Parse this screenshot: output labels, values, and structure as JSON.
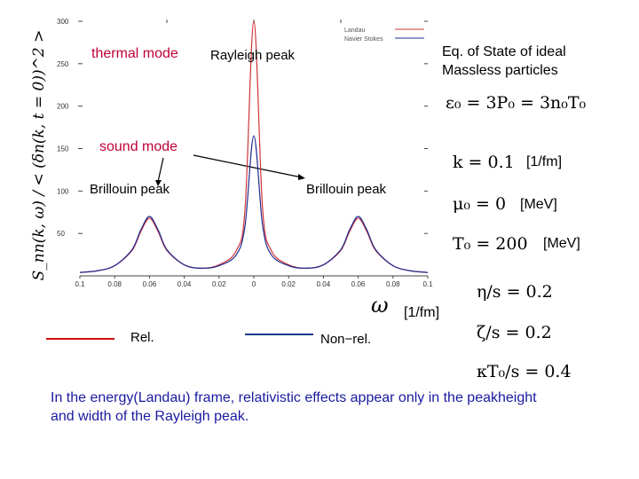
{
  "chart_data": {
    "type": "line",
    "title": "",
    "xlabel": "ω",
    "xunit": "[1/fm]",
    "ylabel": "S_nn(k, ω) / < (δn(k, t = 0))^2 >",
    "xlim": [
      -0.1,
      0.1
    ],
    "ylim": [
      0,
      300
    ],
    "x_tick_labels": [
      "0.1",
      "0.08",
      "0.06",
      "0.04",
      "0.02",
      "0",
      "0.02",
      "0.04",
      "0.06",
      "0.08",
      "0.1"
    ],
    "y_tick_labels": [
      "50",
      "100",
      "150",
      "200",
      "250",
      "300"
    ],
    "series": [
      {
        "name": "Landau",
        "color": "#d0353a",
        "x": [
          -0.1,
          -0.09,
          -0.08,
          -0.07,
          -0.065,
          -0.06,
          -0.055,
          -0.05,
          -0.04,
          -0.03,
          -0.02,
          -0.01,
          -0.005,
          0,
          0.005,
          0.01,
          0.02,
          0.03,
          0.04,
          0.05,
          0.055,
          0.06,
          0.065,
          0.07,
          0.08,
          0.09,
          0.1
        ],
        "y": [
          4,
          6,
          12,
          30,
          52,
          68,
          52,
          30,
          13,
          9,
          13,
          30,
          80,
          300,
          80,
          30,
          13,
          9,
          13,
          30,
          52,
          68,
          52,
          30,
          12,
          6,
          4
        ]
      },
      {
        "name": "Navier Stokes",
        "color": "#1f2c8f",
        "x": [
          -0.1,
          -0.09,
          -0.08,
          -0.07,
          -0.065,
          -0.06,
          -0.055,
          -0.05,
          -0.04,
          -0.03,
          -0.02,
          -0.01,
          -0.005,
          0,
          0.005,
          0.01,
          0.02,
          0.03,
          0.04,
          0.05,
          0.055,
          0.06,
          0.065,
          0.07,
          0.08,
          0.09,
          0.1
        ],
        "y": [
          4,
          6,
          12,
          31,
          54,
          70,
          54,
          31,
          13,
          9,
          12,
          25,
          60,
          165,
          60,
          25,
          12,
          9,
          13,
          31,
          54,
          70,
          54,
          31,
          12,
          6,
          4
        ]
      }
    ],
    "legend": {
      "placement": "top-right",
      "entries": [
        "Landau",
        "Navier Stokes"
      ]
    }
  },
  "annotations": {
    "thermal_mode": "thermal mode",
    "rayleigh_peak": "Rayleigh peak",
    "sound_mode": "sound mode",
    "brillouin_left": "Brillouin peak",
    "brillouin_right": "Brillouin peak"
  },
  "eos": {
    "line1": "Eq. of State of ideal",
    "line2": "Massless particles"
  },
  "parameters": {
    "energy_relation": "ε₀ = 3P₀ = 3n₀T₀",
    "k": "k = 0.1",
    "k_unit": "[1/fm]",
    "mu": "μ₀ = 0",
    "mu_unit": "[MeV]",
    "T": "T₀ = 200",
    "T_unit": "[MeV]",
    "eta": "η/s = 0.2",
    "zeta": "ζ/s = 0.2",
    "kappa": "κT₀/s = 0.4"
  },
  "axis_caption": {
    "omega": "ω",
    "unit": "[1/fm]"
  },
  "legend_bottom": {
    "rel": "Rel.",
    "rel_color": "#d01010",
    "nonrel": "Non−rel.",
    "nonrel_color": "#1a3a8a"
  },
  "conclusion": {
    "line1": "In the energy(Landau) frame,   relativistic effects appear only in the peakheight",
    "line2": "and width of the Rayleigh peak.",
    "color": "#1a1aa0"
  }
}
